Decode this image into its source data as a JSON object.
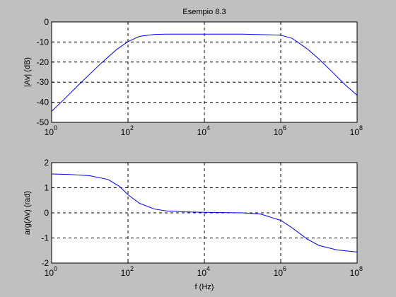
{
  "colors": {
    "figure_bg": "#c0c0c0",
    "axes_bg": "#ffffff",
    "line": "#0000ff",
    "grid": "#000000"
  },
  "chart_data": [
    {
      "type": "line",
      "title": "Esempio 8.3",
      "xlabel": "",
      "ylabel": "|Av| (dB)",
      "xscale": "log",
      "xlim": [
        1,
        100000000
      ],
      "ylim": [
        -50,
        0
      ],
      "xticks": [
        1,
        100,
        10000,
        1000000,
        100000000
      ],
      "xtick_bases": [
        "10",
        "10",
        "10",
        "10",
        "10"
      ],
      "xtick_exponents": [
        "0",
        "2",
        "4",
        "6",
        "8"
      ],
      "yticks": [
        0,
        -10,
        -20,
        -30,
        -40,
        -50
      ],
      "ytick_labels": [
        "0",
        "-10",
        "-20",
        "-30",
        "-40",
        "-50"
      ],
      "grid": "dashed",
      "series": [
        {
          "x": [
            1,
            2,
            5,
            10,
            20,
            50,
            100,
            200,
            500,
            1000,
            10000,
            100000,
            1000000,
            2000000,
            5000000,
            10000000,
            20000000,
            50000000,
            100000000
          ],
          "values": [
            -44.5,
            -39,
            -31.5,
            -26,
            -20.5,
            -13.8,
            -9.8,
            -7.2,
            -6.2,
            -6.1,
            -6.1,
            -6.1,
            -6.6,
            -8.2,
            -13.5,
            -18.5,
            -24,
            -31.5,
            -36.5
          ]
        }
      ]
    },
    {
      "type": "line",
      "title": "",
      "xlabel": "f (Hz)",
      "ylabel": "arg(Av) (rad)",
      "xscale": "log",
      "xlim": [
        1,
        100000000
      ],
      "ylim": [
        -2,
        2
      ],
      "xticks": [
        1,
        100,
        10000,
        1000000,
        100000000
      ],
      "xtick_bases": [
        "10",
        "10",
        "10",
        "10",
        "10"
      ],
      "xtick_exponents": [
        "0",
        "2",
        "4",
        "6",
        "8"
      ],
      "yticks": [
        2,
        1,
        0,
        -1,
        -2
      ],
      "ytick_labels": [
        "2",
        "1",
        "0",
        "-1",
        "-2"
      ],
      "grid": "dashed",
      "series": [
        {
          "x": [
            1,
            3,
            10,
            30,
            60,
            100,
            200,
            500,
            1000,
            3000,
            10000,
            100000,
            300000,
            1000000,
            2000000,
            5000000,
            10000000,
            30000000,
            100000000
          ],
          "values": [
            1.55,
            1.53,
            1.48,
            1.33,
            1.05,
            0.72,
            0.38,
            0.15,
            0.08,
            0.04,
            0.02,
            0.0,
            -0.05,
            -0.3,
            -0.6,
            -1.05,
            -1.3,
            -1.48,
            -1.56
          ]
        }
      ]
    }
  ]
}
